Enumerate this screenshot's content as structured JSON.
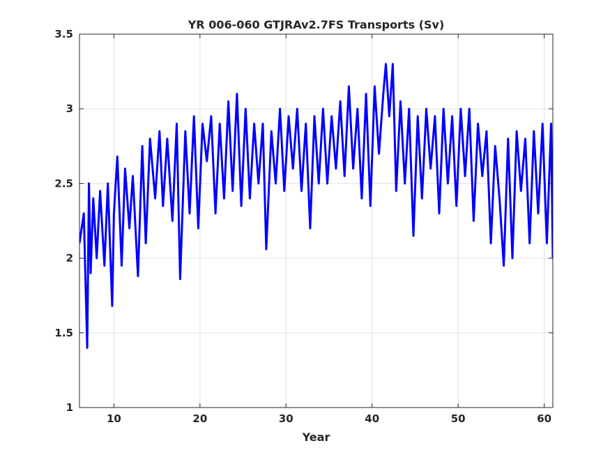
{
  "chart_data": {
    "type": "line",
    "title": "YR 006-060 GTJRAv2.7FS Transports (Sv)",
    "xlabel": "Year",
    "ylabel": "",
    "xlim": [
      6,
      61
    ],
    "ylim": [
      1,
      3.5
    ],
    "xticks": [
      10,
      20,
      30,
      40,
      50,
      60
    ],
    "yticks": [
      1,
      1.5,
      2,
      2.5,
      3,
      3.5
    ],
    "xtick_labels": [
      "10",
      "20",
      "30",
      "40",
      "50",
      "60"
    ],
    "ytick_labels": [
      "1",
      "1.5",
      "2",
      "2.5",
      "3",
      "3.5"
    ],
    "grid": true,
    "series": [
      {
        "color": "#0000ff",
        "x": [
          6.0,
          6.5,
          6.9,
          7.1,
          7.3,
          7.6,
          8.0,
          8.4,
          8.9,
          9.3,
          9.8,
          10.0,
          10.4,
          10.9,
          11.3,
          11.8,
          12.2,
          12.8,
          13.3,
          13.7,
          14.2,
          14.8,
          15.3,
          15.7,
          16.2,
          16.8,
          17.3,
          17.7,
          18.3,
          18.8,
          19.3,
          19.8,
          20.3,
          20.8,
          21.3,
          21.8,
          22.3,
          22.8,
          23.3,
          23.8,
          24.3,
          24.8,
          25.3,
          25.8,
          26.3,
          26.8,
          27.3,
          27.7,
          28.3,
          28.8,
          29.3,
          29.8,
          30.3,
          30.8,
          31.3,
          31.8,
          32.3,
          32.8,
          33.3,
          33.8,
          34.3,
          34.8,
          35.3,
          35.8,
          36.3,
          36.8,
          37.3,
          37.8,
          38.3,
          38.8,
          39.3,
          39.8,
          40.3,
          40.8,
          41.3,
          41.6,
          42.0,
          42.4,
          42.8,
          43.3,
          43.8,
          44.3,
          44.8,
          45.3,
          45.8,
          46.3,
          46.8,
          47.3,
          47.8,
          48.3,
          48.8,
          49.3,
          49.8,
          50.3,
          50.8,
          51.3,
          51.8,
          52.3,
          52.8,
          53.3,
          53.8,
          54.3,
          54.8,
          55.3,
          55.8,
          56.3,
          56.8,
          57.3,
          57.8,
          58.3,
          58.8,
          59.3,
          59.8,
          60.3,
          60.8,
          61.0
        ],
        "y": [
          2.1,
          2.3,
          1.4,
          2.5,
          1.9,
          2.4,
          2.0,
          2.45,
          1.95,
          2.5,
          1.68,
          2.3,
          2.68,
          1.95,
          2.6,
          2.2,
          2.55,
          1.88,
          2.75,
          2.1,
          2.8,
          2.4,
          2.85,
          2.35,
          2.8,
          2.25,
          2.9,
          1.86,
          2.85,
          2.3,
          2.95,
          2.2,
          2.9,
          2.65,
          2.95,
          2.3,
          2.9,
          2.4,
          3.05,
          2.45,
          3.1,
          2.35,
          3.0,
          2.4,
          2.9,
          2.5,
          2.9,
          2.06,
          2.85,
          2.5,
          3.0,
          2.45,
          2.95,
          2.6,
          3.0,
          2.45,
          2.9,
          2.2,
          2.95,
          2.5,
          3.0,
          2.5,
          2.95,
          2.6,
          3.05,
          2.55,
          3.15,
          2.6,
          3.0,
          2.4,
          3.1,
          2.35,
          3.15,
          2.7,
          3.1,
          3.3,
          2.95,
          3.3,
          2.45,
          3.05,
          2.5,
          3.0,
          2.15,
          2.95,
          2.4,
          3.0,
          2.6,
          2.95,
          2.3,
          3.0,
          2.5,
          2.95,
          2.35,
          3.0,
          2.55,
          3.0,
          2.25,
          2.9,
          2.55,
          2.85,
          2.1,
          2.75,
          2.4,
          1.95,
          2.8,
          2.0,
          2.85,
          2.45,
          2.8,
          2.1,
          2.85,
          2.3,
          2.9,
          2.1,
          2.9,
          2.0
        ]
      }
    ]
  }
}
